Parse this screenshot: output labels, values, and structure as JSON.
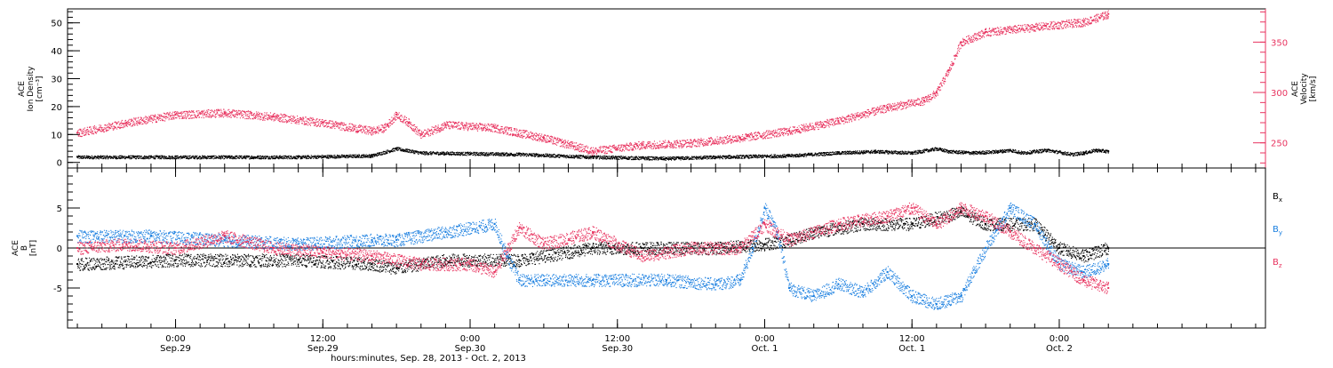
{
  "chart_data": [
    {
      "type": "scatter",
      "panel": "top",
      "y_label_lines": [
        "ACE",
        "Ion Density",
        "[cm⁻³]"
      ],
      "y2_label_lines": [
        "ACE",
        "Velocity",
        "[km/s]"
      ],
      "ylim": [
        -2,
        55
      ],
      "y_ticks": [
        0,
        10,
        20,
        30,
        40,
        50
      ],
      "y2lim": [
        225,
        383
      ],
      "y2_ticks": [
        250,
        300,
        350
      ],
      "series": [
        {
          "axis": "left",
          "color": "#000000",
          "points": [
            [
              -8,
              2
            ],
            [
              0,
              2
            ],
            [
              10,
              2
            ],
            [
              16,
              2.5
            ],
            [
              18,
              5
            ],
            [
              20,
              3.5
            ],
            [
              28,
              3
            ],
            [
              34,
              2
            ],
            [
              40,
              1.5
            ],
            [
              44,
              2
            ],
            [
              50,
              2.5
            ],
            [
              54,
              3.5
            ],
            [
              57,
              4
            ],
            [
              60,
              3.5
            ],
            [
              62,
              5
            ],
            [
              63,
              4
            ],
            [
              65,
              3.5
            ],
            [
              67,
              4
            ],
            [
              68,
              4.5
            ],
            [
              69,
              3.5
            ],
            [
              71,
              4.5
            ],
            [
              73,
              3
            ],
            [
              74,
              3.5
            ],
            [
              75,
              4.5
            ],
            [
              76,
              4
            ]
          ]
        },
        {
          "axis": "right",
          "color": "#e8335f",
          "points": [
            [
              -8,
              260
            ],
            [
              -4,
              270
            ],
            [
              0,
              278
            ],
            [
              4,
              280
            ],
            [
              8,
              276
            ],
            [
              12,
              270
            ],
            [
              16,
              262
            ],
            [
              17,
              265
            ],
            [
              18,
              278
            ],
            [
              19,
              270
            ],
            [
              20,
              258
            ],
            [
              22,
              268
            ],
            [
              26,
              265
            ],
            [
              30,
              255
            ],
            [
              34,
              242
            ],
            [
              38,
              248
            ],
            [
              42,
              250
            ],
            [
              46,
              255
            ],
            [
              50,
              262
            ],
            [
              54,
              272
            ],
            [
              58,
              285
            ],
            [
              61,
              292
            ],
            [
              62,
              300
            ],
            [
              63,
              322
            ],
            [
              64,
              350
            ],
            [
              66,
              360
            ],
            [
              70,
              365
            ],
            [
              74,
              370
            ],
            [
              76,
              378
            ]
          ]
        }
      ]
    },
    {
      "type": "scatter",
      "panel": "bottom",
      "y_label_lines": [
        "ACE",
        "B",
        "[nT]"
      ],
      "ylim": [
        -10,
        10
      ],
      "y_ticks": [
        -5,
        0,
        5
      ],
      "zero_line": true,
      "legend": [
        "Bx",
        "By",
        "Bz"
      ],
      "legend_placement": "right",
      "series": [
        {
          "name": "Bx",
          "color": "#000000",
          "points": [
            [
              -8,
              -2
            ],
            [
              0,
              -1.5
            ],
            [
              10,
              -1.5
            ],
            [
              16,
              -2
            ],
            [
              18,
              -2.5
            ],
            [
              20,
              -2
            ],
            [
              22,
              -1.5
            ],
            [
              28,
              -1.5
            ],
            [
              34,
              0
            ],
            [
              40,
              0
            ],
            [
              44,
              0
            ],
            [
              48,
              0.5
            ],
            [
              50,
              1
            ],
            [
              52,
              2
            ],
            [
              56,
              3
            ],
            [
              60,
              3
            ],
            [
              64,
              4.5
            ],
            [
              66,
              3
            ],
            [
              70,
              3
            ],
            [
              72,
              0
            ],
            [
              74,
              -1
            ],
            [
              76,
              0
            ]
          ]
        },
        {
          "name": "By",
          "color": "#1a7fe0",
          "points": [
            [
              -8,
              1.5
            ],
            [
              -2,
              1.5
            ],
            [
              4,
              1
            ],
            [
              10,
              0.5
            ],
            [
              16,
              1
            ],
            [
              18,
              1
            ],
            [
              22,
              2
            ],
            [
              26,
              3
            ],
            [
              27,
              -1
            ],
            [
              28,
              -4
            ],
            [
              30,
              -4
            ],
            [
              34,
              -4
            ],
            [
              40,
              -4
            ],
            [
              44,
              -4.5
            ],
            [
              46,
              -4
            ],
            [
              47,
              0
            ],
            [
              48,
              5
            ],
            [
              49,
              2
            ],
            [
              50,
              -5
            ],
            [
              52,
              -6
            ],
            [
              54,
              -4.5
            ],
            [
              56,
              -5.5
            ],
            [
              58,
              -3
            ],
            [
              60,
              -6
            ],
            [
              62,
              -7
            ],
            [
              64,
              -6
            ],
            [
              66,
              0
            ],
            [
              68,
              5
            ],
            [
              70,
              3
            ],
            [
              72,
              -2
            ],
            [
              74,
              -3
            ],
            [
              76,
              -2
            ]
          ]
        },
        {
          "name": "Bz",
          "color": "#e8335f",
          "points": [
            [
              -8,
              0
            ],
            [
              -4,
              0.5
            ],
            [
              0,
              0
            ],
            [
              4,
              1.5
            ],
            [
              8,
              0
            ],
            [
              12,
              -0.5
            ],
            [
              16,
              -1
            ],
            [
              20,
              -2
            ],
            [
              24,
              -2
            ],
            [
              26,
              -3
            ],
            [
              28,
              2.5
            ],
            [
              30,
              0.5
            ],
            [
              34,
              2
            ],
            [
              38,
              -1
            ],
            [
              42,
              0
            ],
            [
              46,
              0
            ],
            [
              48,
              3
            ],
            [
              50,
              1
            ],
            [
              54,
              3
            ],
            [
              58,
              4
            ],
            [
              60,
              5
            ],
            [
              62,
              3
            ],
            [
              64,
              5
            ],
            [
              66,
              4
            ],
            [
              68,
              2
            ],
            [
              70,
              0
            ],
            [
              72,
              -2
            ],
            [
              74,
              -4
            ],
            [
              76,
              -5
            ]
          ]
        }
      ]
    }
  ],
  "x_axis": {
    "title": "hours:minutes, Sep. 28, 2013 - Oct. 2, 2013",
    "xlim": [
      -8.8,
      88.8
    ],
    "ticks": [
      {
        "hours": 0,
        "time": "0:00",
        "date": "Sep.29"
      },
      {
        "hours": 12,
        "time": "12:00",
        "date": "Sep.29"
      },
      {
        "hours": 24,
        "time": "0:00",
        "date": "Sep.30"
      },
      {
        "hours": 36,
        "time": "12:00",
        "date": "Sep.30"
      },
      {
        "hours": 48,
        "time": "0:00",
        "date": "Oct. 1"
      },
      {
        "hours": 60,
        "time": "12:00",
        "date": "Oct. 1"
      },
      {
        "hours": 72,
        "time": "0:00",
        "date": "Oct. 2"
      }
    ]
  }
}
